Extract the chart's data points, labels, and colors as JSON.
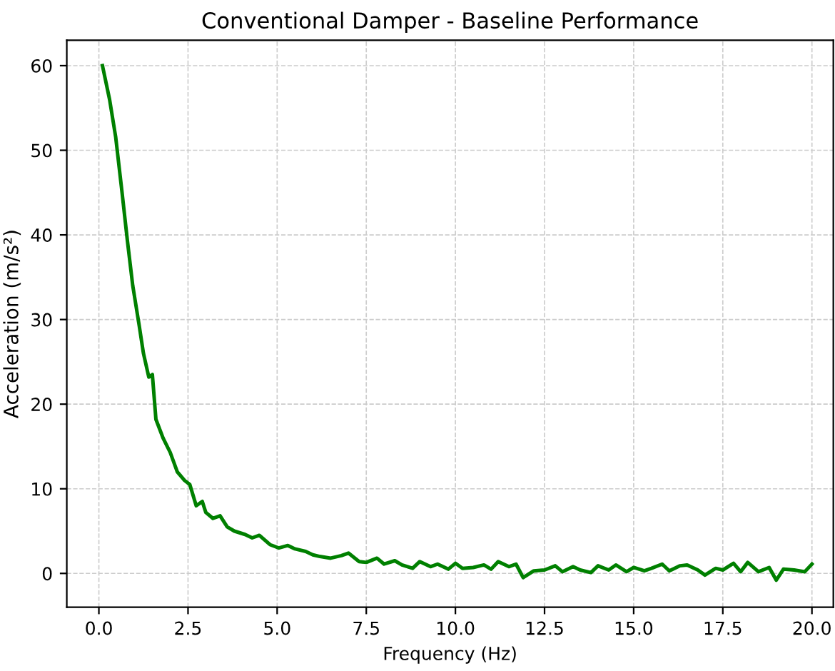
{
  "chart_data": {
    "type": "line",
    "title": "Conventional Damper - Baseline Performance",
    "xlabel": "Frequency (Hz)",
    "ylabel": "Acceleration (m/s²)",
    "x": [
      0.1,
      0.3,
      0.47,
      0.65,
      0.8,
      0.95,
      1.13,
      1.25,
      1.4,
      1.5,
      1.6,
      1.8,
      2.0,
      2.2,
      2.4,
      2.55,
      2.73,
      2.9,
      3.0,
      3.2,
      3.4,
      3.6,
      3.8,
      4.1,
      4.3,
      4.5,
      4.8,
      5.05,
      5.3,
      5.5,
      5.8,
      6.0,
      6.2,
      6.5,
      6.8,
      7.0,
      7.3,
      7.5,
      7.8,
      8.0,
      8.3,
      8.5,
      8.8,
      9.0,
      9.3,
      9.5,
      9.8,
      10.0,
      10.2,
      10.5,
      10.8,
      11.0,
      11.2,
      11.5,
      11.7,
      11.9,
      12.2,
      12.5,
      12.8,
      13.0,
      13.3,
      13.5,
      13.8,
      14.0,
      14.3,
      14.5,
      14.8,
      15.0,
      15.3,
      15.5,
      15.8,
      16.0,
      16.3,
      16.5,
      16.8,
      17.0,
      17.3,
      17.5,
      17.8,
      18.0,
      18.2,
      18.5,
      18.8,
      19.0,
      19.2,
      19.5,
      19.8,
      20.0
    ],
    "series": [
      {
        "color": "#008000",
        "values": [
          60,
          56,
          51.6,
          45,
          39.3,
          34,
          29.3,
          26,
          23.2,
          23.5,
          18.2,
          16,
          14.3,
          12,
          11,
          10.5,
          8,
          8.5,
          7.2,
          6.5,
          6.8,
          5.5,
          5,
          4.6,
          4.2,
          4.5,
          3.4,
          3.0,
          3.3,
          2.9,
          2.6,
          2.2,
          2.0,
          1.8,
          2.1,
          2.4,
          1.4,
          1.3,
          1.8,
          1.1,
          1.5,
          1.0,
          0.6,
          1.4,
          0.8,
          1.1,
          0.5,
          1.2,
          0.6,
          0.7,
          1.0,
          0.5,
          1.4,
          0.8,
          1.1,
          -0.5,
          0.3,
          0.4,
          0.9,
          0.2,
          0.8,
          0.4,
          0.1,
          0.9,
          0.4,
          1.0,
          0.2,
          0.7,
          0.3,
          0.6,
          1.1,
          0.3,
          0.9,
          1.0,
          0.4,
          -0.2,
          0.6,
          0.4,
          1.2,
          0.2,
          1.3,
          0.2,
          0.7,
          -0.8,
          0.5,
          0.4,
          0.2,
          1.1
        ]
      }
    ],
    "xlim": [
      -0.9,
      20.6
    ],
    "ylim": [
      -4,
      63
    ],
    "xticks": [
      {
        "value": 0,
        "label": "0.0"
      },
      {
        "value": 2.5,
        "label": "2.5"
      },
      {
        "value": 5,
        "label": "5.0"
      },
      {
        "value": 7.5,
        "label": "7.5"
      },
      {
        "value": 10,
        "label": "10.0"
      },
      {
        "value": 12.5,
        "label": "12.5"
      },
      {
        "value": 15,
        "label": "15.0"
      },
      {
        "value": 17.5,
        "label": "17.5"
      },
      {
        "value": 20,
        "label": "20.0"
      }
    ],
    "yticks": [
      0,
      10,
      20,
      30,
      40,
      50,
      60
    ],
    "grid": true,
    "line_style": "solid"
  }
}
